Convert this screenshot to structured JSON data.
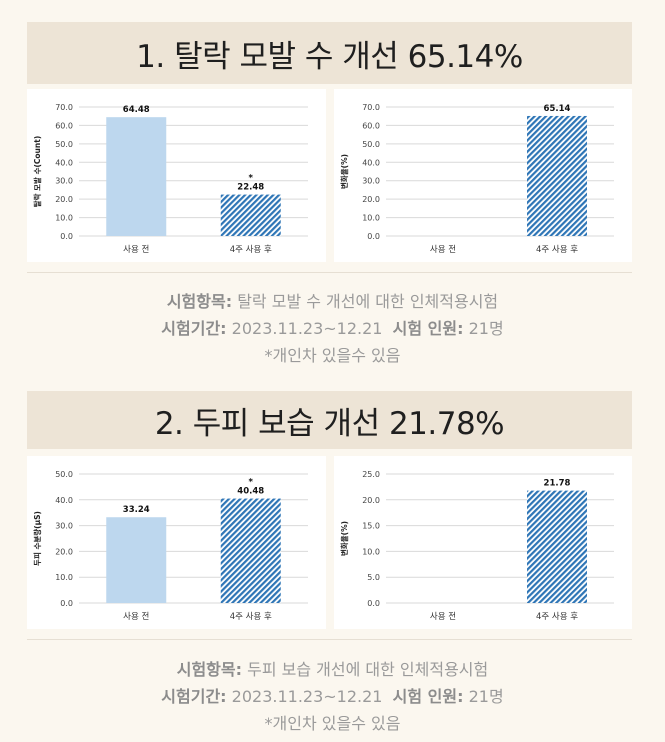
{
  "sections": [
    {
      "title": "1. 탈락 모발 수 개선 65.14%",
      "info": {
        "item_label": "시험항목:",
        "item_value": " 탈락 모발 수 개선에 대한 인체적용시험",
        "period_label": "시험기간:",
        "period_value": " 2023.11.23~12.21",
        "people_label": "시험 인원:",
        "people_value": " 21명",
        "note": "*개인차 있을수 있음"
      }
    },
    {
      "title": "2. 두피 보습 개선 21.78%",
      "info": {
        "item_label": "시험항목:",
        "item_value": " 두피 보습 개선에 대한 인체적용시험",
        "period_label": "시험기간:",
        "period_value": " 2023.11.23~12.21",
        "people_label": "시험 인원:",
        "people_value": " 21명",
        "note": "*개인차 있을수 있음"
      }
    }
  ],
  "colors": {
    "solid_bar": "#bdd7ee",
    "hatch_bar": "#2e75b6",
    "grid": "#d9d9d9"
  },
  "chart_data": [
    {
      "type": "bar",
      "ylabel": "탈락 모발 수(Count)",
      "categories": [
        "사용 전",
        "4주 사용 후"
      ],
      "values": [
        64.48,
        22.48
      ],
      "value_labels": [
        "64.48",
        "22.48"
      ],
      "styles": [
        "solid",
        "hatched"
      ],
      "annotations": [
        "",
        "*"
      ],
      "ylim": [
        0,
        70
      ],
      "yticks": [
        "0.0",
        "10.0",
        "20.0",
        "30.0",
        "40.0",
        "50.0",
        "60.0",
        "70.0"
      ],
      "grid": true
    },
    {
      "type": "bar",
      "ylabel": "변화율(%)",
      "categories": [
        "사용 전",
        "4주 사용 후"
      ],
      "values": [
        null,
        65.14
      ],
      "value_labels": [
        "",
        "65.14"
      ],
      "styles": [
        "none",
        "hatched"
      ],
      "annotations": [
        "",
        ""
      ],
      "ylim": [
        0,
        70
      ],
      "yticks": [
        "0.0",
        "10.0",
        "20.0",
        "30.0",
        "40.0",
        "50.0",
        "60.0",
        "70.0"
      ],
      "grid": true
    },
    {
      "type": "bar",
      "ylabel": "두피 수분량(μS)",
      "categories": [
        "사용 전",
        "4주 사용 후"
      ],
      "values": [
        33.24,
        40.48
      ],
      "value_labels": [
        "33.24",
        "40.48"
      ],
      "styles": [
        "solid",
        "hatched"
      ],
      "annotations": [
        "",
        "*"
      ],
      "ylim": [
        0,
        50
      ],
      "yticks": [
        "0.0",
        "10.0",
        "20.0",
        "30.0",
        "40.0",
        "50.0"
      ],
      "grid": true
    },
    {
      "type": "bar",
      "ylabel": "변화율(%)",
      "categories": [
        "사용 전",
        "4주 사용 후"
      ],
      "values": [
        null,
        21.78
      ],
      "value_labels": [
        "",
        "21.78"
      ],
      "styles": [
        "none",
        "hatched"
      ],
      "annotations": [
        "",
        ""
      ],
      "ylim": [
        0,
        25
      ],
      "yticks": [
        "0.0",
        "5.0",
        "10.0",
        "15.0",
        "20.0",
        "25.0"
      ],
      "grid": true
    }
  ]
}
